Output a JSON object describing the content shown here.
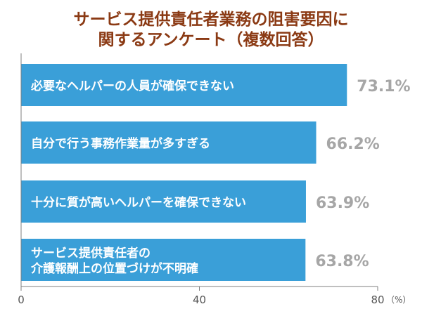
{
  "title_lines": [
    "サービス提供責任者業務の阻害要因に",
    "関するアンケート（複数回答）"
  ],
  "chart_data": {
    "type": "bar",
    "orientation": "horizontal",
    "title": "サービス提供責任者業務の阻害要因に関するアンケート（複数回答）",
    "categories": [
      [
        "必要なヘルパーの人員が確保できない"
      ],
      [
        "自分で行う事務作業量が多すぎる"
      ],
      [
        "十分に質が高いヘルパーを確保できない"
      ],
      [
        "サービス提供責任者の",
        "介護報酬上の位置づけが不明確"
      ]
    ],
    "values": [
      73.1,
      66.2,
      63.9,
      63.8
    ],
    "value_labels": [
      "73.1%",
      "66.2%",
      "63.9%",
      "63.8%"
    ],
    "xlim": [
      0,
      80
    ],
    "x_ticks": [
      "0",
      "40",
      "80"
    ],
    "x_unit": "（%）",
    "bar_color": "#3a9fd8",
    "label_color": "#ffffff",
    "value_color": "#a6a6a6",
    "grid": false
  }
}
